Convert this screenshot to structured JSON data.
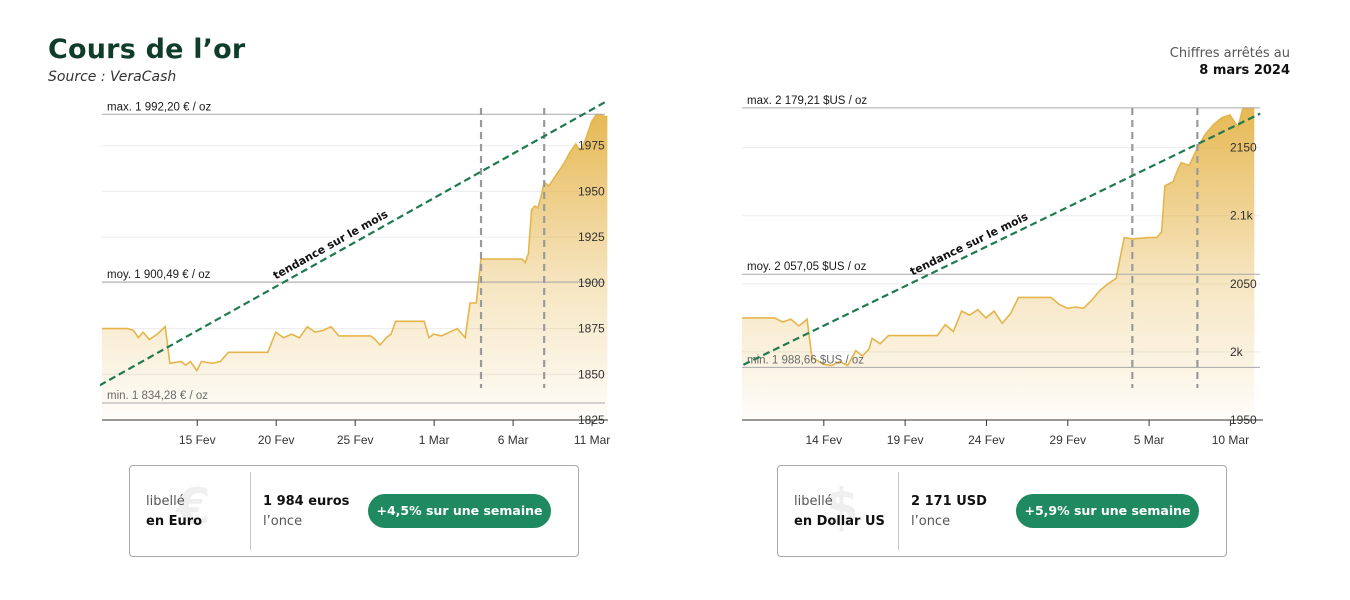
{
  "header": {
    "title": "Cours de l’or",
    "source": "Source : VeraCash",
    "asof_label": "Chiffres arrêtés au",
    "asof_date": "8 mars 2024"
  },
  "colors": {
    "gold": "#e5b54b",
    "trend": "#1e7a4f",
    "pill": "#1f8a60",
    "title": "#0f3d2a"
  },
  "cards": [
    {
      "unit_label": "libellé",
      "unit_name": "en Euro",
      "symbol": "€",
      "price": "1 984 euros",
      "price_sub": "l’once",
      "change": "+4,5% sur une semaine"
    },
    {
      "unit_label": "libellé",
      "unit_name": "en Dollar US",
      "symbol": "$",
      "price": "2 171  USD",
      "price_sub": "l’once",
      "change": "+5,9% sur une semaine"
    }
  ],
  "chart_data": [
    {
      "type": "area",
      "x_domain": [
        "2024-02-09",
        "2024-03-11"
      ],
      "x_ticks": [
        "2024-02-15",
        "2024-02-20",
        "2024-02-25",
        "2024-03-01",
        "2024-03-06",
        "2024-03-11"
      ],
      "x_tick_labels": [
        "15 Fev",
        "20 Fev",
        "25 Fev",
        "1 Mar",
        "6 Mar",
        "11 Mar"
      ],
      "ylim": [
        1825,
        2000
      ],
      "y_ticks": [
        1825,
        1850,
        1875,
        1900,
        1925,
        1950,
        1975
      ],
      "y_tick_labels": [
        "1825",
        "1850",
        "1875",
        "1900",
        "1925",
        "1950",
        "1975"
      ],
      "ref_lines": [
        {
          "value": 1992.2,
          "label": "max. 1 992,20 € / oz"
        },
        {
          "value": 1900.49,
          "label": "moy. 1 900,49 € / oz"
        },
        {
          "value": 1834.28,
          "label": "min. 1 834,28 € / oz"
        }
      ],
      "week_markers": [
        "2024-03-04",
        "2024-03-08"
      ],
      "trend_label": "tendance sur le mois",
      "trend": [
        [
          "2024-02-09",
          1841
        ],
        [
          "2024-03-11",
          1999
        ]
      ],
      "series": [
        {
          "values": [
            [
              "2024-02-09",
              1875
            ],
            [
              "2024-02-10",
              1875
            ],
            [
              "2024-02-10.6",
              1875
            ],
            [
              "2024-02-11",
              1874
            ],
            [
              "2024-02-11.3",
              1870
            ],
            [
              "2024-02-11.6",
              1873
            ],
            [
              "2024-02-12",
              1869
            ],
            [
              "2024-02-12.5",
              1872
            ],
            [
              "2024-02-13",
              1876
            ],
            [
              "2024-02-13.3",
              1856
            ],
            [
              "2024-02-14",
              1857
            ],
            [
              "2024-02-14.3",
              1855
            ],
            [
              "2024-02-14.6",
              1857
            ],
            [
              "2024-02-15",
              1852
            ],
            [
              "2024-02-15.3",
              1857
            ],
            [
              "2024-02-16",
              1856
            ],
            [
              "2024-02-16.5",
              1857
            ],
            [
              "2024-02-17",
              1862
            ],
            [
              "2024-02-19",
              1862
            ],
            [
              "2024-02-19.5",
              1862
            ],
            [
              "2024-02-20",
              1873
            ],
            [
              "2024-02-20.5",
              1870
            ],
            [
              "2024-02-21",
              1872
            ],
            [
              "2024-02-21.5",
              1870
            ],
            [
              "2024-02-22",
              1876
            ],
            [
              "2024-02-22.5",
              1873
            ],
            [
              "2024-02-23",
              1874
            ],
            [
              "2024-02-23.5",
              1876
            ],
            [
              "2024-02-24",
              1871
            ],
            [
              "2024-02-25",
              1871
            ],
            [
              "2024-02-25.5",
              1871
            ],
            [
              "2024-02-26",
              1871
            ],
            [
              "2024-02-26.3",
              1869
            ],
            [
              "2024-02-26.6",
              1866
            ],
            [
              "2024-02-27",
              1870
            ],
            [
              "2024-02-27.3",
              1872
            ],
            [
              "2024-02-27.6",
              1879
            ],
            [
              "2024-02-28",
              1879
            ],
            [
              "2024-02-29",
              1879
            ],
            [
              "2024-02-29.4",
              1879
            ],
            [
              "2024-02-29.7",
              1870
            ],
            [
              "2024-03-01",
              1872
            ],
            [
              "2024-03-01.5",
              1871
            ],
            [
              "2024-03-02",
              1873
            ],
            [
              "2024-03-02.5",
              1875
            ],
            [
              "2024-03-03",
              1870
            ],
            [
              "2024-03-03.3",
              1889
            ],
            [
              "2024-03-03.7",
              1889
            ],
            [
              "2024-03-04",
              1913
            ],
            [
              "2024-03-05",
              1913
            ],
            [
              "2024-03-06",
              1913
            ],
            [
              "2024-03-06.6",
              1913
            ],
            [
              "2024-03-06.8",
              1911
            ],
            [
              "2024-03-07",
              1916
            ],
            [
              "2024-03-07.2",
              1940
            ],
            [
              "2024-03-07.4",
              1942
            ],
            [
              "2024-03-07.6",
              1941
            ],
            [
              "2024-03-07.8",
              1947
            ],
            [
              "2024-03-08",
              1955
            ],
            [
              "2024-03-08.3",
              1953
            ],
            [
              "2024-03-08.6",
              1957
            ],
            [
              "2024-03-09",
              1962
            ],
            [
              "2024-03-09.3",
              1966
            ],
            [
              "2024-03-09.6",
              1971
            ],
            [
              "2024-03-10",
              1976
            ],
            [
              "2024-03-10.3",
              1972
            ],
            [
              "2024-03-10.6",
              1978
            ],
            [
              "2024-03-11",
              1988
            ],
            [
              "2024-03-11.3",
              1992
            ],
            [
              "2024-03-11.6",
              1992
            ],
            [
              "2024-03-11.8",
              1991
            ],
            [
              "2024-03-12",
              1991
            ]
          ]
        }
      ]
    },
    {
      "type": "area",
      "x_domain": [
        "2024-02-09",
        "2024-03-11"
      ],
      "x_ticks": [
        "2024-02-14",
        "2024-02-19",
        "2024-02-24",
        "2024-02-29",
        "2024-03-05",
        "2024-03-10"
      ],
      "x_tick_labels": [
        "14 Fev",
        "19 Fev",
        "24 Fev",
        "29 Fev",
        "5 Mar",
        "10 Mar"
      ],
      "ylim": [
        1950,
        2185
      ],
      "y_ticks": [
        1950,
        2000,
        2050,
        2100,
        2150
      ],
      "y_tick_labels": [
        "1950",
        "2k",
        "2050",
        "2.1k",
        "2150"
      ],
      "ref_lines": [
        {
          "value": 2179.21,
          "label": "max. 2 179,21 $US / oz"
        },
        {
          "value": 2057.05,
          "label": "moy. 2 057,05 $US / oz"
        },
        {
          "value": 1988.66,
          "label": "min. 1 988,66 $US / oz"
        }
      ],
      "week_markers": [
        "2024-03-04",
        "2024-03-08"
      ],
      "trend_label": "tendance sur le mois",
      "trend": [
        [
          "2024-02-08",
          1980
        ],
        [
          "2024-03-11",
          2175
        ]
      ],
      "series": [
        {
          "values": [
            [
              "2024-02-09",
              2025
            ],
            [
              "2024-02-10",
              2025
            ],
            [
              "2024-02-11",
              2025
            ],
            [
              "2024-02-11.5",
              2022
            ],
            [
              "2024-02-12",
              2024
            ],
            [
              "2024-02-12.5",
              2019
            ],
            [
              "2024-02-13",
              2024
            ],
            [
              "2024-02-13.3",
              1996
            ],
            [
              "2024-02-14",
              1991
            ],
            [
              "2024-02-14.5",
              1990
            ],
            [
              "2024-02-15",
              1993
            ],
            [
              "2024-02-15.5",
              1990
            ],
            [
              "2024-02-16",
              2001
            ],
            [
              "2024-02-16.4",
              1997
            ],
            [
              "2024-02-16.8",
              2002
            ],
            [
              "2024-02-17",
              2010
            ],
            [
              "2024-02-17.5",
              2006
            ],
            [
              "2024-02-18",
              2012
            ],
            [
              "2024-02-21",
              2012
            ],
            [
              "2024-02-21.5",
              2020
            ],
            [
              "2024-02-22",
              2015
            ],
            [
              "2024-02-22.5",
              2030
            ],
            [
              "2024-02-23",
              2027
            ],
            [
              "2024-02-23.5",
              2031
            ],
            [
              "2024-02-24",
              2025
            ],
            [
              "2024-02-24.5",
              2030
            ],
            [
              "2024-02-25",
              2021
            ],
            [
              "2024-02-25.5",
              2028
            ],
            [
              "2024-02-26",
              2040
            ],
            [
              "2024-02-27",
              2040
            ],
            [
              "2024-02-28",
              2040
            ],
            [
              "2024-02-28.5",
              2035
            ],
            [
              "2024-02-29",
              2032
            ],
            [
              "2024-02-29.5",
              2033
            ],
            [
              "2024-03-01",
              2032
            ],
            [
              "2024-03-01.5",
              2038
            ],
            [
              "2024-03-02",
              2045
            ],
            [
              "2024-03-02.5",
              2050
            ],
            [
              "2024-03-03",
              2054
            ],
            [
              "2024-03-03.5",
              2084
            ],
            [
              "2024-03-04",
              2083
            ],
            [
              "2024-03-05",
              2084
            ],
            [
              "2024-03-05.5",
              2084
            ],
            [
              "2024-03-05.8",
              2088
            ],
            [
              "2024-03-06",
              2122
            ],
            [
              "2024-03-06.5",
              2125
            ],
            [
              "2024-03-06.8",
              2134
            ],
            [
              "2024-03-07",
              2139
            ],
            [
              "2024-03-07.5",
              2137
            ],
            [
              "2024-03-08",
              2150
            ],
            [
              "2024-03-08.5",
              2160
            ],
            [
              "2024-03-09",
              2167
            ],
            [
              "2024-03-09.5",
              2172
            ],
            [
              "2024-03-10",
              2174
            ],
            [
              "2024-03-10.5",
              2165
            ],
            [
              "2024-03-10.8",
              2179
            ],
            [
              "2024-03-11",
              2179
            ],
            [
              "2024-03-11.5",
              2179
            ]
          ]
        }
      ]
    }
  ]
}
